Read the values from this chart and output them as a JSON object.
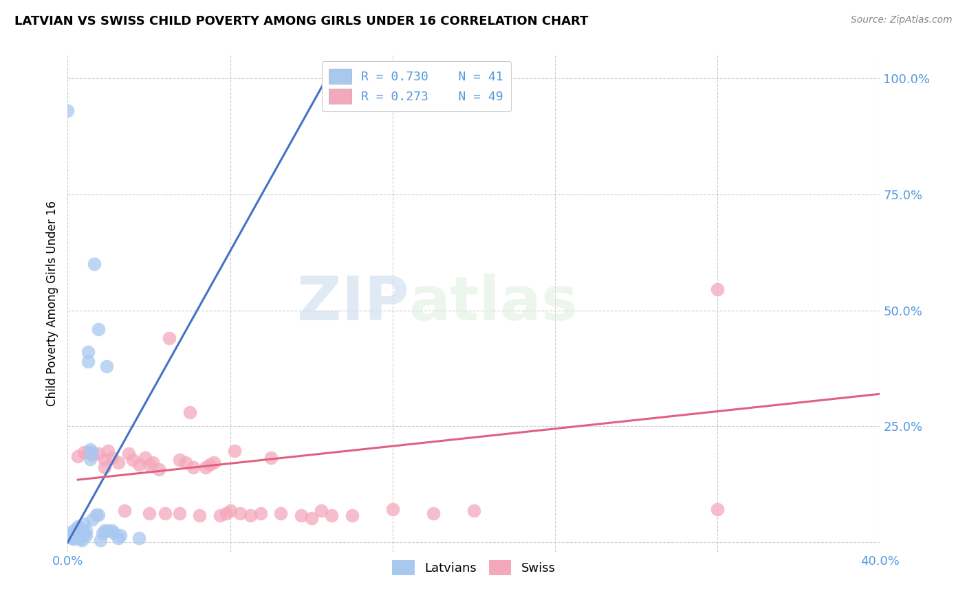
{
  "title": "LATVIAN VS SWISS CHILD POVERTY AMONG GIRLS UNDER 16 CORRELATION CHART",
  "source": "Source: ZipAtlas.com",
  "ylabel": "Child Poverty Among Girls Under 16",
  "xlim": [
    0.0,
    0.4
  ],
  "ylim": [
    -0.02,
    1.05
  ],
  "latvian_color": "#A8C8F0",
  "swiss_color": "#F4A8BC",
  "latvian_line_color": "#4472C4",
  "swiss_line_color": "#E06080",
  "background_color": "#ffffff",
  "grid_color": "#cccccc",
  "watermark_zip": "ZIP",
  "watermark_atlas": "atlas",
  "latvian_points": [
    [
      0.001,
      0.02
    ],
    [
      0.002,
      0.015
    ],
    [
      0.002,
      0.01
    ],
    [
      0.003,
      0.008
    ],
    [
      0.003,
      0.025
    ],
    [
      0.004,
      0.012
    ],
    [
      0.004,
      0.022
    ],
    [
      0.005,
      0.018
    ],
    [
      0.005,
      0.03
    ],
    [
      0.005,
      0.035
    ],
    [
      0.006,
      0.008
    ],
    [
      0.006,
      0.02
    ],
    [
      0.006,
      0.015
    ],
    [
      0.007,
      0.028
    ],
    [
      0.007,
      0.022
    ],
    [
      0.007,
      0.005
    ],
    [
      0.008,
      0.018
    ],
    [
      0.008,
      0.04
    ],
    [
      0.009,
      0.015
    ],
    [
      0.009,
      0.025
    ],
    [
      0.01,
      0.39
    ],
    [
      0.01,
      0.41
    ],
    [
      0.011,
      0.2
    ],
    [
      0.011,
      0.18
    ],
    [
      0.012,
      0.195
    ],
    [
      0.012,
      0.05
    ],
    [
      0.013,
      0.6
    ],
    [
      0.014,
      0.06
    ],
    [
      0.015,
      0.06
    ],
    [
      0.015,
      0.46
    ],
    [
      0.016,
      0.005
    ],
    [
      0.017,
      0.02
    ],
    [
      0.018,
      0.025
    ],
    [
      0.019,
      0.38
    ],
    [
      0.02,
      0.025
    ],
    [
      0.022,
      0.025
    ],
    [
      0.023,
      0.02
    ],
    [
      0.025,
      0.01
    ],
    [
      0.026,
      0.015
    ],
    [
      0.035,
      0.01
    ],
    [
      0.0,
      0.93
    ]
  ],
  "swiss_points": [
    [
      0.005,
      0.185
    ],
    [
      0.008,
      0.195
    ],
    [
      0.01,
      0.195
    ],
    [
      0.012,
      0.188
    ],
    [
      0.015,
      0.192
    ],
    [
      0.018,
      0.178
    ],
    [
      0.018,
      0.162
    ],
    [
      0.02,
      0.198
    ],
    [
      0.022,
      0.182
    ],
    [
      0.025,
      0.172
    ],
    [
      0.028,
      0.068
    ],
    [
      0.03,
      0.192
    ],
    [
      0.032,
      0.178
    ],
    [
      0.035,
      0.168
    ],
    [
      0.038,
      0.182
    ],
    [
      0.04,
      0.168
    ],
    [
      0.04,
      0.062
    ],
    [
      0.042,
      0.172
    ],
    [
      0.045,
      0.158
    ],
    [
      0.048,
      0.062
    ],
    [
      0.05,
      0.44
    ],
    [
      0.055,
      0.178
    ],
    [
      0.055,
      0.062
    ],
    [
      0.058,
      0.172
    ],
    [
      0.06,
      0.28
    ],
    [
      0.062,
      0.162
    ],
    [
      0.065,
      0.058
    ],
    [
      0.068,
      0.162
    ],
    [
      0.07,
      0.168
    ],
    [
      0.072,
      0.172
    ],
    [
      0.075,
      0.058
    ],
    [
      0.078,
      0.062
    ],
    [
      0.08,
      0.068
    ],
    [
      0.082,
      0.198
    ],
    [
      0.085,
      0.062
    ],
    [
      0.09,
      0.058
    ],
    [
      0.095,
      0.062
    ],
    [
      0.1,
      0.182
    ],
    [
      0.105,
      0.062
    ],
    [
      0.115,
      0.058
    ],
    [
      0.12,
      0.052
    ],
    [
      0.125,
      0.068
    ],
    [
      0.13,
      0.058
    ],
    [
      0.14,
      0.058
    ],
    [
      0.16,
      0.072
    ],
    [
      0.18,
      0.062
    ],
    [
      0.2,
      0.068
    ],
    [
      0.32,
      0.545
    ],
    [
      0.32,
      0.072
    ]
  ],
  "lv_line_x": [
    0.0,
    0.13
  ],
  "lv_line_y": [
    0.0,
    1.02
  ],
  "sw_line_x": [
    0.005,
    0.4
  ],
  "sw_line_y": [
    0.135,
    0.32
  ]
}
